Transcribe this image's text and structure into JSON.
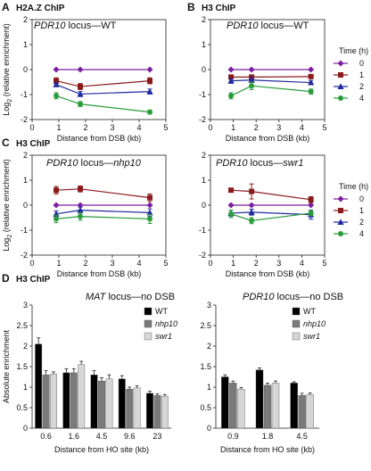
{
  "figure": {
    "legend_title": "Time (h)",
    "colors": {
      "0": "#7a1fa2",
      "1": "#8b1a1a",
      "2": "#1f2a9e",
      "4": "#2a9d3a",
      "WT": "#000000",
      "nhp10": "#7a7a7a",
      "swr1": "#d6d6d6"
    }
  },
  "chart_data": [
    {
      "id": "A",
      "type": "line",
      "panel_title": "H2A.Z ChIP",
      "title_parts": [
        {
          "t": "PDR10",
          "i": true
        },
        {
          "t": " locus—WT",
          "i": false
        }
      ],
      "xlabel": "Distance from DSB (kb)",
      "ylabel": "Log2 (relative enrichment)",
      "xlim": [
        0,
        5
      ],
      "ylim": [
        -2,
        2
      ],
      "xticks": [
        0,
        1,
        2,
        3,
        4,
        5
      ],
      "yticks": [
        -2,
        -1,
        0,
        1,
        2
      ],
      "x": [
        0.9,
        1.8,
        4.4
      ],
      "series": [
        {
          "name": "0",
          "values": [
            0,
            0,
            0
          ],
          "err": [
            0.02,
            0.02,
            0.02
          ]
        },
        {
          "name": "1",
          "values": [
            -0.45,
            -0.68,
            -0.45
          ],
          "err": [
            0.12,
            0.12,
            0.12
          ]
        },
        {
          "name": "2",
          "values": [
            -0.6,
            -0.98,
            -0.88
          ],
          "err": [
            0.08,
            0.1,
            0.1
          ]
        },
        {
          "name": "4",
          "values": [
            -1.05,
            -1.38,
            -1.7
          ],
          "err": [
            0.12,
            0.1,
            0.08
          ]
        }
      ]
    },
    {
      "id": "B",
      "type": "line",
      "panel_title": "H3 ChIP",
      "title_parts": [
        {
          "t": "PDR10",
          "i": true
        },
        {
          "t": " locus—WT",
          "i": false
        }
      ],
      "xlabel": "Distance from DSB (kb)",
      "ylabel": "",
      "xlim": [
        0,
        5
      ],
      "ylim": [
        -2,
        2
      ],
      "xticks": [
        0,
        1,
        2,
        3,
        4,
        5
      ],
      "yticks": [
        -2,
        -1,
        0,
        1,
        2
      ],
      "x": [
        0.9,
        1.8,
        4.4
      ],
      "series": [
        {
          "name": "0",
          "values": [
            0,
            0,
            0
          ],
          "err": [
            0.02,
            0.02,
            0.02
          ]
        },
        {
          "name": "1",
          "values": [
            -0.3,
            -0.3,
            -0.28
          ],
          "err": [
            0.08,
            0.08,
            0.06
          ]
        },
        {
          "name": "2",
          "values": [
            -0.45,
            -0.42,
            -0.52
          ],
          "err": [
            0.1,
            0.1,
            0.08
          ]
        },
        {
          "name": "4",
          "values": [
            -1.05,
            -0.65,
            -0.88
          ],
          "err": [
            0.12,
            0.15,
            0.1
          ]
        }
      ],
      "legend": true
    },
    {
      "id": "C1",
      "type": "line",
      "panel_title": "H3 ChIP",
      "title_parts": [
        {
          "t": "PDR10",
          "i": true
        },
        {
          "t": " locus—",
          "i": false
        },
        {
          "t": "nhp10",
          "i": true
        }
      ],
      "xlabel": "Distance from DSB (kb)",
      "ylabel": "Log2 (relative enrichment)",
      "xlim": [
        0,
        5
      ],
      "ylim": [
        -2,
        2
      ],
      "xticks": [
        0,
        1,
        2,
        3,
        4,
        5
      ],
      "yticks": [
        -2,
        -1,
        0,
        1,
        2
      ],
      "x": [
        0.9,
        1.8,
        4.4
      ],
      "series": [
        {
          "name": "0",
          "values": [
            0,
            0,
            0
          ],
          "err": [
            0.02,
            0.02,
            0.02
          ]
        },
        {
          "name": "1",
          "values": [
            0.6,
            0.65,
            0.3
          ],
          "err": [
            0.15,
            0.12,
            0.15
          ]
        },
        {
          "name": "2",
          "values": [
            -0.35,
            -0.2,
            -0.3
          ],
          "err": [
            0.12,
            0.12,
            0.15
          ]
        },
        {
          "name": "4",
          "values": [
            -0.55,
            -0.45,
            -0.55
          ],
          "err": [
            0.15,
            0.15,
            0.18
          ]
        }
      ]
    },
    {
      "id": "C2",
      "type": "line",
      "panel_title": "",
      "title_parts": [
        {
          "t": "PDR10",
          "i": true
        },
        {
          "t": " locus—",
          "i": false
        },
        {
          "t": "swr1",
          "i": true
        }
      ],
      "xlabel": "Distance from DSB (kb)",
      "ylabel": "",
      "xlim": [
        0,
        5
      ],
      "ylim": [
        -2,
        2
      ],
      "xticks": [
        0,
        1,
        2,
        3,
        4,
        5
      ],
      "yticks": [
        -2,
        -1,
        0,
        1,
        2
      ],
      "x": [
        0.9,
        1.8,
        4.4
      ],
      "series": [
        {
          "name": "0",
          "values": [
            0,
            0,
            0
          ],
          "err": [
            0.02,
            0.02,
            0.02
          ]
        },
        {
          "name": "1",
          "values": [
            0.6,
            0.55,
            0.22
          ],
          "err": [
            0.08,
            0.3,
            0.12
          ]
        },
        {
          "name": "2",
          "values": [
            -0.32,
            -0.28,
            -0.38
          ],
          "err": [
            0.12,
            0.12,
            0.18
          ]
        },
        {
          "name": "4",
          "values": [
            -0.35,
            -0.62,
            -0.32
          ],
          "err": [
            0.15,
            0.12,
            0.1
          ]
        }
      ],
      "legend": true
    },
    {
      "id": "D1",
      "type": "bar",
      "panel_title": "H3 ChIP",
      "title_parts": [
        {
          "t": "MAT",
          "i": true
        },
        {
          "t": " locus—no DSB",
          "i": false
        }
      ],
      "xlabel": "Distance from HO site (kb)",
      "ylabel": "Absolute enrichment",
      "ylim": [
        0,
        3
      ],
      "yticks": [
        0,
        0.5,
        1,
        1.5,
        2,
        2.5,
        3
      ],
      "categories": [
        "0.6",
        "1.6",
        "4.5",
        "9.6",
        "23"
      ],
      "series": [
        {
          "name": "WT",
          "values": [
            2.05,
            1.35,
            1.3,
            1.2,
            0.85
          ],
          "err": [
            0.15,
            0.1,
            0.1,
            0.08,
            0.05
          ]
        },
        {
          "name": "nhp10",
          "values": [
            1.3,
            1.35,
            1.15,
            0.95,
            0.8
          ],
          "err": [
            0.1,
            0.1,
            0.08,
            0.05,
            0.04
          ]
        },
        {
          "name": "swr1",
          "values": [
            1.32,
            1.55,
            1.2,
            0.98,
            0.78
          ],
          "err": [
            0.05,
            0.08,
            0.1,
            0.05,
            0.04
          ]
        }
      ],
      "legend": true
    },
    {
      "id": "D2",
      "type": "bar",
      "panel_title": "",
      "title_parts": [
        {
          "t": "PDR10",
          "i": true
        },
        {
          "t": " locus—no DSB",
          "i": false
        }
      ],
      "xlabel": "Distance from HO site (kb)",
      "ylabel": "",
      "ylim": [
        0,
        3
      ],
      "yticks": [
        0,
        0.5,
        1,
        1.5,
        2,
        2.5,
        3
      ],
      "categories": [
        "0.9",
        "1.8",
        "4.5"
      ],
      "series": [
        {
          "name": "WT",
          "values": [
            1.25,
            1.42,
            1.1
          ],
          "err": [
            0.05,
            0.05,
            0.03
          ]
        },
        {
          "name": "nhp10",
          "values": [
            1.1,
            1.05,
            0.8
          ],
          "err": [
            0.05,
            0.05,
            0.05
          ]
        },
        {
          "name": "swr1",
          "values": [
            0.95,
            1.1,
            0.82
          ],
          "err": [
            0.04,
            0.05,
            0.04
          ]
        }
      ],
      "legend": true
    }
  ],
  "panel_letters": {
    "A": "A",
    "B": "B",
    "C": "C",
    "D": "D"
  }
}
